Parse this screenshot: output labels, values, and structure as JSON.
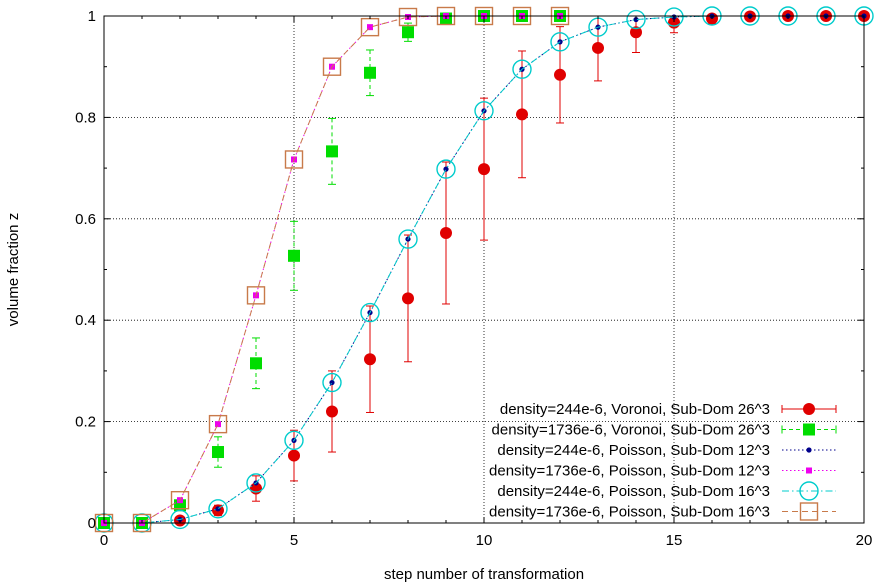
{
  "chart_data": {
    "type": "scatter",
    "title": "",
    "xlabel": "step number of transformation",
    "ylabel": "volume fraction z",
    "xlim": [
      0,
      20
    ],
    "ylim": [
      0,
      1
    ],
    "xticks": [
      "0",
      "5",
      "10",
      "15",
      "20"
    ],
    "yticks": [
      "0",
      "0.2",
      "0.4",
      "0.6",
      "0.8",
      "1"
    ],
    "grid": true,
    "legend_position": "bottom-right",
    "series": [
      {
        "name": "density=244e-6, Voronoi, Sub-Dom 26^3",
        "color": "#e00000",
        "marker": "filled-circle",
        "line": "errorbars",
        "x": [
          0,
          1,
          2,
          3,
          4,
          5,
          6,
          7,
          8,
          9,
          10,
          11,
          12,
          13,
          14,
          15,
          16,
          17,
          18,
          19,
          20
        ],
        "y": [
          0,
          0,
          0.005,
          0.025,
          0.068,
          0.133,
          0.22,
          0.323,
          0.443,
          0.572,
          0.698,
          0.806,
          0.884,
          0.937,
          0.968,
          0.987,
          0.995,
          0.999,
          1,
          1,
          1
        ],
        "err": [
          0,
          0,
          0.003,
          0.01,
          0.025,
          0.05,
          0.08,
          0.105,
          0.125,
          0.14,
          0.14,
          0.125,
          0.095,
          0.065,
          0.04,
          0.02,
          0.01,
          0.004,
          0.002,
          0.001,
          0
        ]
      },
      {
        "name": "density=1736e-6, Voronoi, Sub-Dom 26^3",
        "color": "#00dd00",
        "marker": "filled-square",
        "line": "errorbars",
        "x": [
          0,
          1,
          2,
          3,
          4,
          5,
          6,
          7,
          8,
          9,
          10,
          11,
          12
        ],
        "y": [
          0,
          0,
          0.035,
          0.14,
          0.315,
          0.527,
          0.733,
          0.888,
          0.968,
          0.995,
          1,
          1,
          1
        ],
        "err": [
          0,
          0,
          0.01,
          0.03,
          0.05,
          0.068,
          0.065,
          0.045,
          0.018,
          0.005,
          0,
          0,
          0
        ]
      },
      {
        "name": "density=244e-6, Poisson, Sub-Dom 12^3",
        "color": "#00008b",
        "marker": "small-dot",
        "line": "dotted",
        "x": [
          0,
          1,
          2,
          3,
          4,
          5,
          6,
          7,
          8,
          9,
          10,
          11,
          12,
          13,
          14,
          15,
          16,
          17,
          18,
          19,
          20
        ],
        "y": [
          0,
          0,
          0.007,
          0.028,
          0.079,
          0.163,
          0.277,
          0.415,
          0.56,
          0.698,
          0.813,
          0.895,
          0.949,
          0.978,
          0.993,
          0.998,
          1,
          1,
          1,
          1,
          1
        ]
      },
      {
        "name": "density=1736e-6, Poisson, Sub-Dom 12^3",
        "color": "#ee00ee",
        "marker": "small-square",
        "line": "dotted",
        "x": [
          0,
          1,
          2,
          3,
          4,
          5,
          6,
          7,
          8,
          9,
          10,
          11,
          12
        ],
        "y": [
          0,
          0,
          0.045,
          0.195,
          0.449,
          0.717,
          0.9,
          0.978,
          0.998,
          1,
          1,
          1,
          1
        ]
      },
      {
        "name": "density=244e-6, Poisson, Sub-Dom 16^3",
        "color": "#00cccc",
        "marker": "open-circle",
        "line": "dash-dot",
        "x": [
          0,
          1,
          2,
          3,
          4,
          5,
          6,
          7,
          8,
          9,
          10,
          11,
          12,
          13,
          14,
          15,
          16,
          17,
          18,
          19,
          20
        ],
        "y": [
          0,
          0,
          0.007,
          0.028,
          0.079,
          0.163,
          0.277,
          0.415,
          0.56,
          0.698,
          0.813,
          0.895,
          0.949,
          0.978,
          0.993,
          0.998,
          1,
          1,
          1,
          1,
          1
        ]
      },
      {
        "name": "density=1736e-6, Poisson, Sub-Dom 16^3",
        "color": "#c87a4a",
        "marker": "open-square",
        "line": "dashed",
        "x": [
          0,
          1,
          2,
          3,
          4,
          5,
          6,
          7,
          8,
          9,
          10,
          11,
          12
        ],
        "y": [
          0,
          0,
          0.045,
          0.195,
          0.449,
          0.717,
          0.9,
          0.978,
          0.998,
          1,
          1,
          1,
          1
        ]
      }
    ]
  }
}
